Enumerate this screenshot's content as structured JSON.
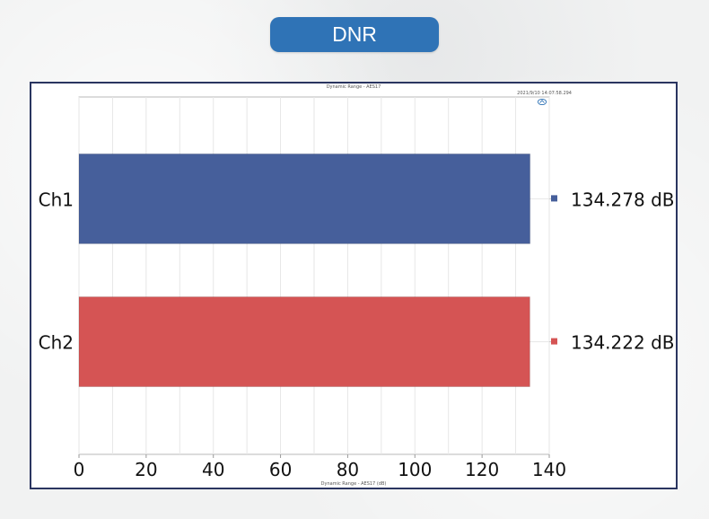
{
  "header": {
    "title": "DNR"
  },
  "panel": {
    "title": "Dynamic Range - AES17",
    "timestamp": "2021/9/10 14:07:58.294",
    "logo_icon": "ap-logo-icon"
  },
  "chart_data": {
    "type": "bar",
    "orientation": "horizontal",
    "categories": [
      "Ch1",
      "Ch2"
    ],
    "values": [
      134.278,
      134.222
    ],
    "value_labels": [
      "134.278 dB",
      "134.222 dB"
    ],
    "colors": [
      "#465f9b",
      "#d55454"
    ],
    "xlabel": "Dynamic Range - AES17 (dB)",
    "xlim": [
      0,
      140
    ],
    "xticks": [
      0,
      20,
      40,
      60,
      80,
      100,
      120,
      140
    ],
    "grid": true,
    "legend": "right"
  }
}
